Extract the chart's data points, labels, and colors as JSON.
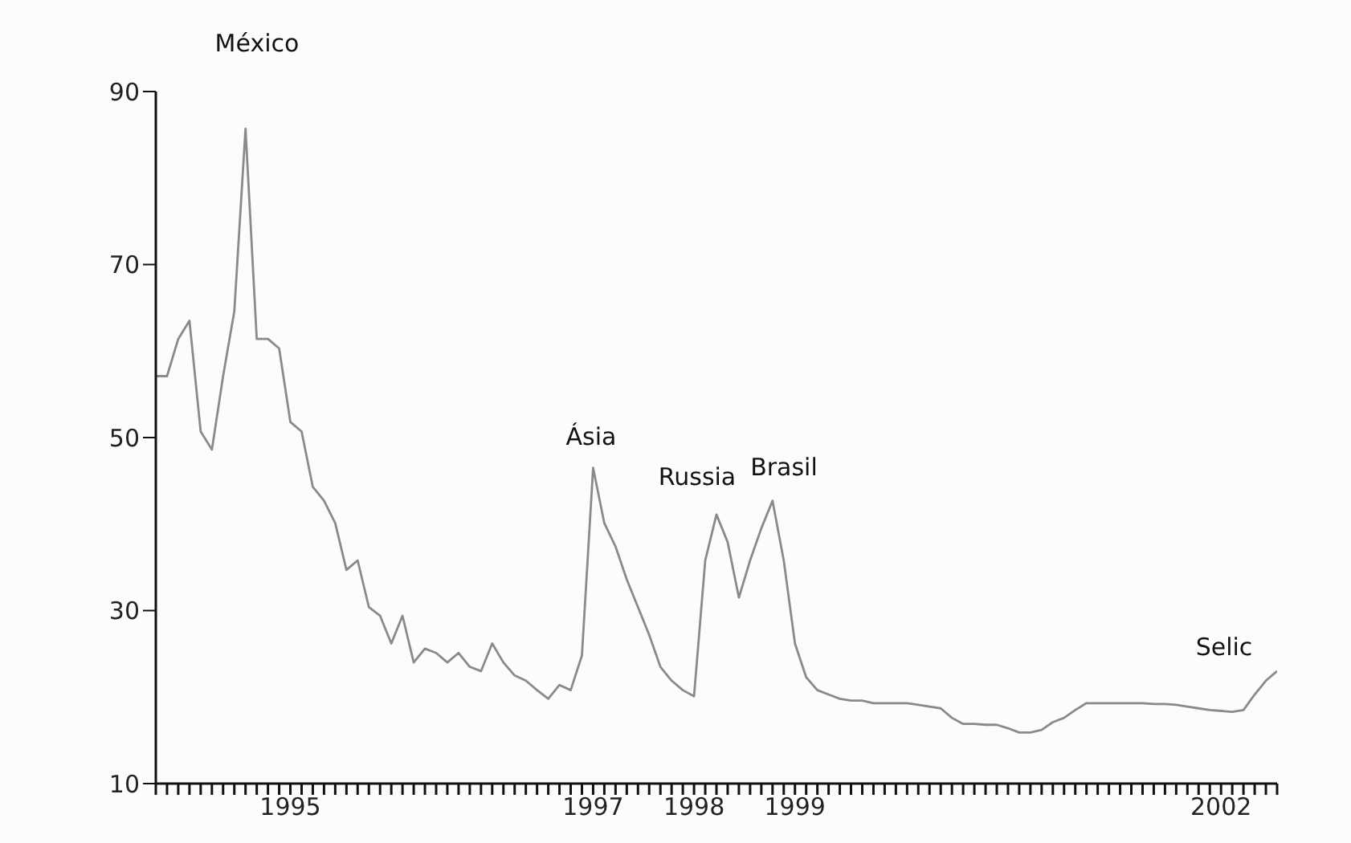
{
  "chart_data": {
    "type": "line",
    "categories": [
      null,
      null,
      null,
      null,
      null,
      null,
      null,
      null,
      null,
      null,
      null,
      null,
      "1995",
      null,
      null,
      null,
      null,
      null,
      null,
      null,
      null,
      null,
      null,
      null,
      null,
      null,
      null,
      null,
      null,
      null,
      null,
      null,
      null,
      null,
      null,
      null,
      null,
      null,
      null,
      "1997",
      null,
      null,
      null,
      null,
      null,
      null,
      null,
      null,
      "1998",
      null,
      null,
      null,
      null,
      null,
      null,
      null,
      null,
      "1999",
      null,
      null,
      null,
      null,
      null,
      null,
      null,
      null,
      null,
      null,
      null,
      null,
      null,
      null,
      null,
      null,
      null,
      null,
      null,
      null,
      null,
      null,
      null,
      null,
      null,
      null,
      null,
      null,
      null,
      null,
      null,
      null,
      null,
      null,
      null,
      null,
      null,
      "2002",
      null,
      null,
      null,
      null,
      null
    ],
    "series": [
      {
        "color": "#8a8a8a",
        "values": [
          57.1,
          57.1,
          61.4,
          63.5,
          50.7,
          48.6,
          57.1,
          64.6,
          85.7,
          61.4,
          61.4,
          60.3,
          51.8,
          50.7,
          44.3,
          42.7,
          40.1,
          34.7,
          35.8,
          30.4,
          29.4,
          26.2,
          29.4,
          24.0,
          25.6,
          25.1,
          24.0,
          25.1,
          23.5,
          23.0,
          26.2,
          24.0,
          22.5,
          21.9,
          20.8,
          19.8,
          21.4,
          20.8,
          24.8,
          46.5,
          40.1,
          37.4,
          33.6,
          30.4,
          27.2,
          23.5,
          21.9,
          20.8,
          20.1,
          35.8,
          41.1,
          37.9,
          31.5,
          35.8,
          39.5,
          42.7,
          35.8,
          26.2,
          22.3,
          20.8,
          20.3,
          19.8,
          19.6,
          19.6,
          19.3,
          19.3,
          19.3,
          19.3,
          19.1,
          18.9,
          18.7,
          17.6,
          16.9,
          16.9,
          16.8,
          16.8,
          16.4,
          15.9,
          15.9,
          16.2,
          17.1,
          17.6,
          18.5,
          19.3,
          19.3,
          19.3,
          19.3,
          19.3,
          19.3,
          19.2,
          19.2,
          19.1,
          18.9,
          18.7,
          18.5,
          18.4,
          18.3,
          18.5,
          20.3,
          21.9,
          23.0
        ]
      }
    ],
    "ylim": [
      10,
      90
    ],
    "yticks": [
      10,
      30,
      50,
      70,
      90
    ],
    "annotations": [
      "México",
      "Ásia",
      "Russia",
      "Brasil",
      "Selic"
    ]
  }
}
